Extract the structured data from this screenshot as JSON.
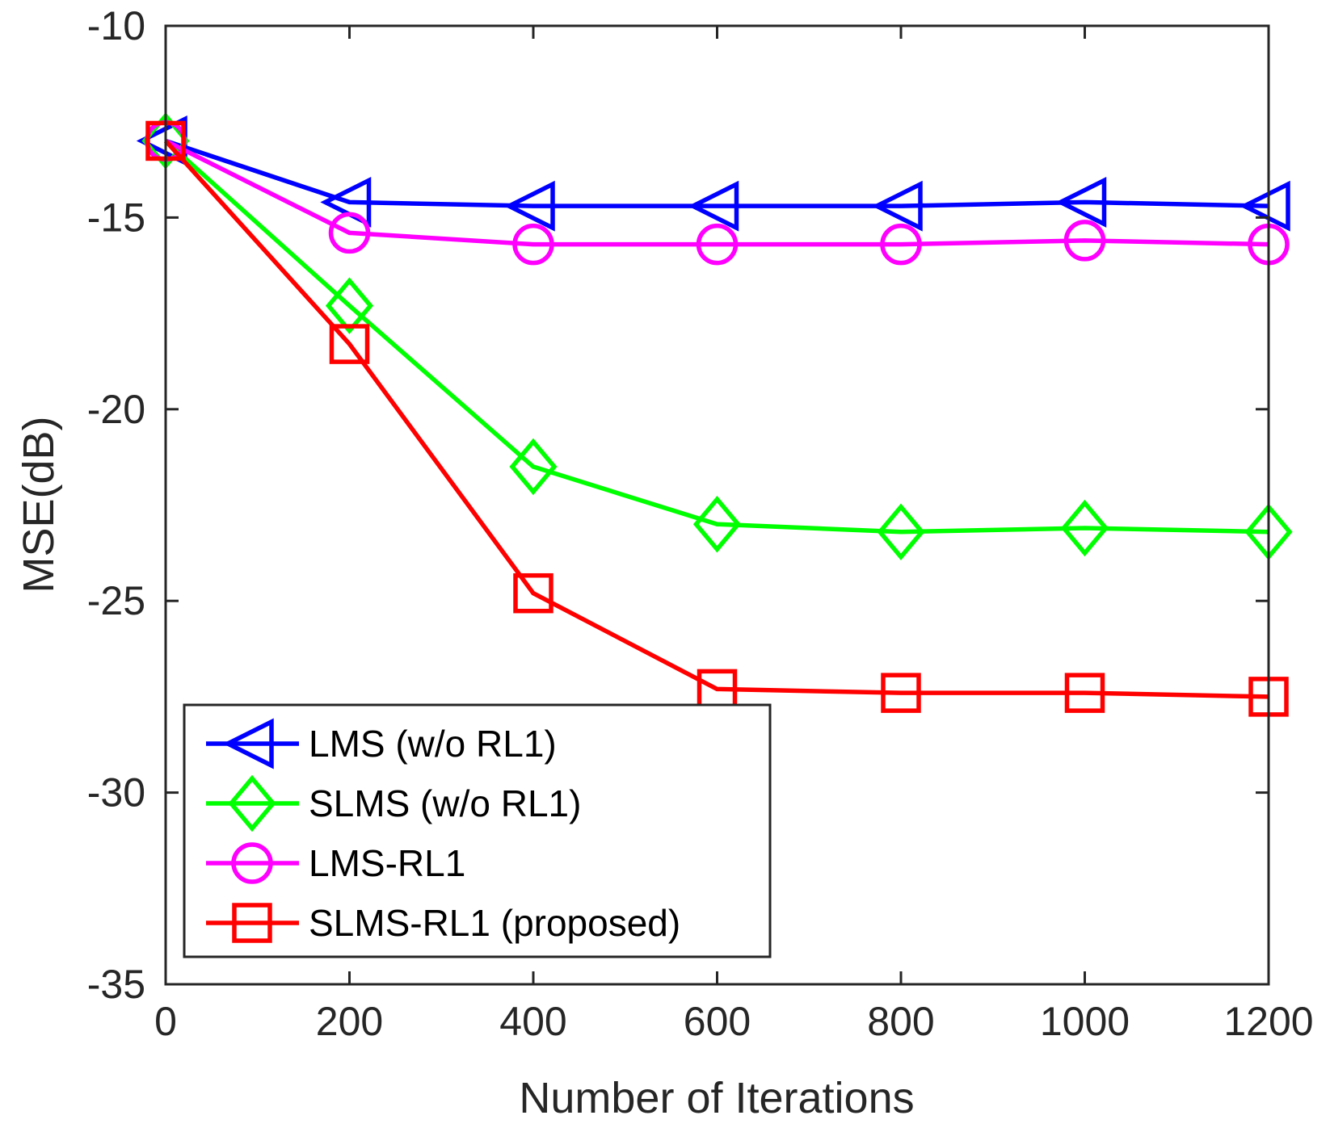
{
  "chart_data": {
    "type": "line",
    "title": "",
    "xlabel": "Number of Iterations",
    "ylabel": "MSE(dB)",
    "xlim": [
      0,
      1200
    ],
    "ylim": [
      -35,
      -10
    ],
    "xticks": [
      0,
      200,
      400,
      600,
      800,
      1000,
      1200
    ],
    "yticks": [
      -10,
      -15,
      -20,
      -25,
      -30,
      -35
    ],
    "xtick_labels": [
      "0",
      "200",
      "400",
      "600",
      "800",
      "1000",
      "1200"
    ],
    "ytick_labels": [
      "-10",
      "-15",
      "-20",
      "-25",
      "-30",
      "-35"
    ],
    "grid": false,
    "legend_position": "bottom-left",
    "x": [
      0,
      200,
      400,
      600,
      800,
      1000,
      1200
    ],
    "series": [
      {
        "name": "LMS (w/o RL1)",
        "marker": "triangle-left",
        "color": "#0000FF",
        "values": [
          -13.0,
          -14.6,
          -14.7,
          -14.7,
          -14.7,
          -14.6,
          -14.7
        ]
      },
      {
        "name": "SLMS (w/o RL1)",
        "marker": "diamond",
        "color": "#00FF00",
        "values": [
          -13.0,
          -17.3,
          -21.5,
          -23.0,
          -23.2,
          -23.1,
          -23.2
        ]
      },
      {
        "name": "LMS-RL1",
        "marker": "circle",
        "color": "#FF00FF",
        "values": [
          -13.0,
          -15.4,
          -15.7,
          -15.7,
          -15.7,
          -15.6,
          -15.7
        ]
      },
      {
        "name": "SLMS-RL1 (proposed)",
        "marker": "square",
        "color": "#FF0000",
        "values": [
          -13.0,
          -18.3,
          -24.8,
          -27.3,
          -27.4,
          -27.4,
          -27.5
        ]
      }
    ]
  }
}
